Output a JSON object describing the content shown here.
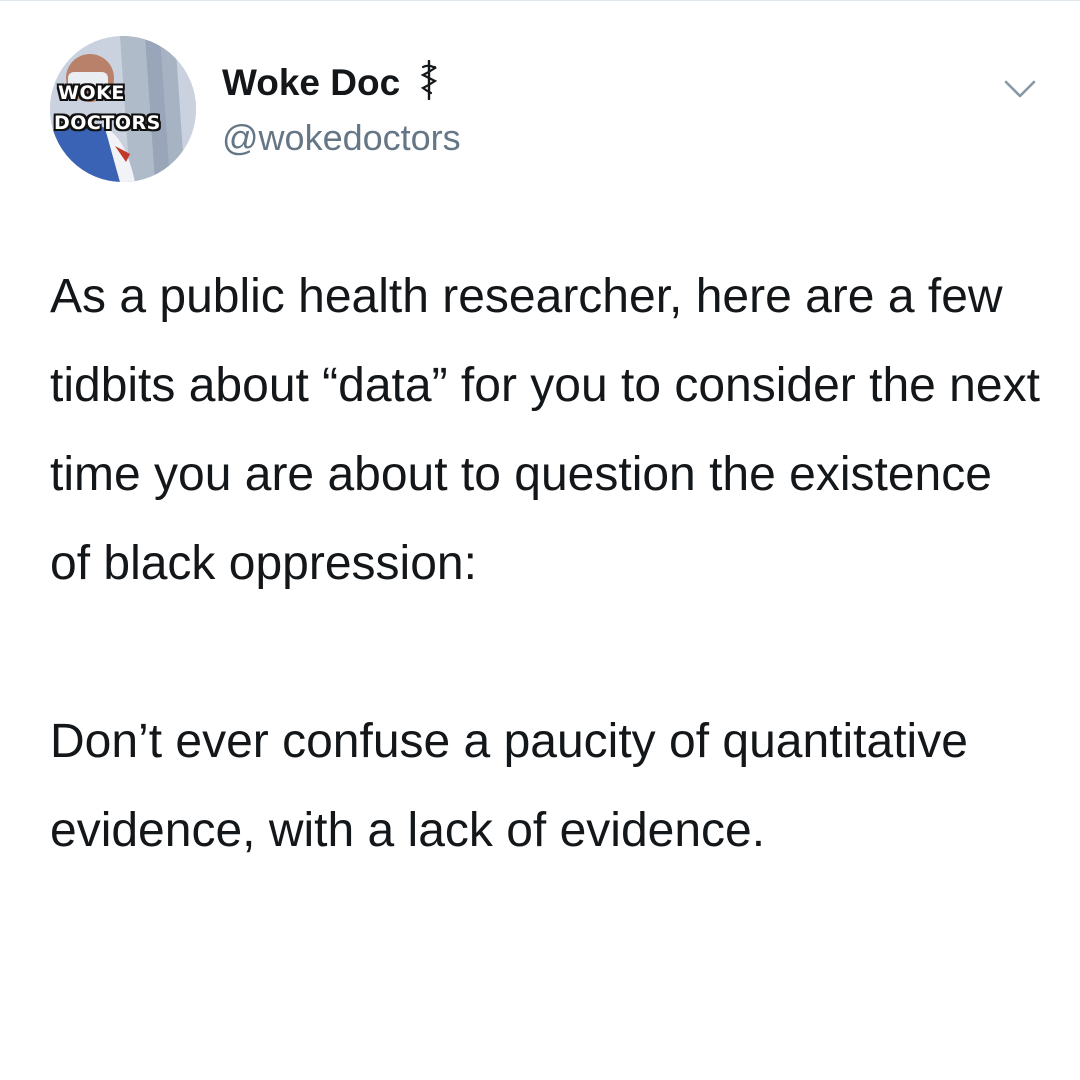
{
  "tweet": {
    "avatar_logo": {
      "line1": "WOKE",
      "line2": "DOCTORS"
    },
    "author": {
      "display_name": "Woke Doc",
      "handle": "@wokedoctors",
      "name_badge_icon": "staff-of-aesculapius-icon"
    },
    "menu_icon": "chevron-down-icon",
    "text": {
      "paragraph1": "As a public health researcher, here are a few tidbits about “data” for you to consider the next time you are about to question the existence of black oppression:",
      "paragraph2": "Don’t ever confuse a paucity of quantitative evidence, with a lack of evidence."
    }
  },
  "colors": {
    "text_primary": "#14171a",
    "text_secondary": "#657786",
    "divider": "#e1e8ed",
    "background": "#ffffff"
  }
}
